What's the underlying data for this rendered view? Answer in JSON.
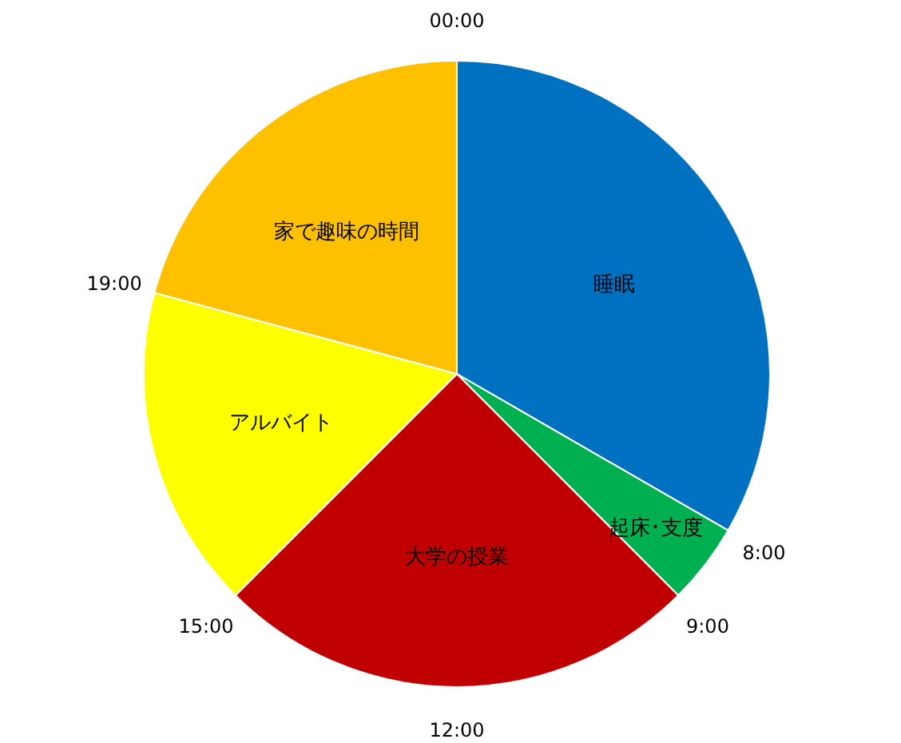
{
  "chart_data": {
    "type": "pie",
    "categories": [
      "睡眠",
      "起床･支度",
      "大学の授業",
      "アルバイト",
      "家で趣味の時間"
    ],
    "values": [
      33.33,
      4.17,
      25,
      16.67,
      20.83
    ],
    "colors": [
      "#0070c0",
      "#00b050",
      "#c00000",
      "#ffff00",
      "#ffc000"
    ],
    "annotations": [
      "00:00",
      "8:00",
      "9:00",
      "12:00",
      "15:00",
      "19:00"
    ]
  }
}
